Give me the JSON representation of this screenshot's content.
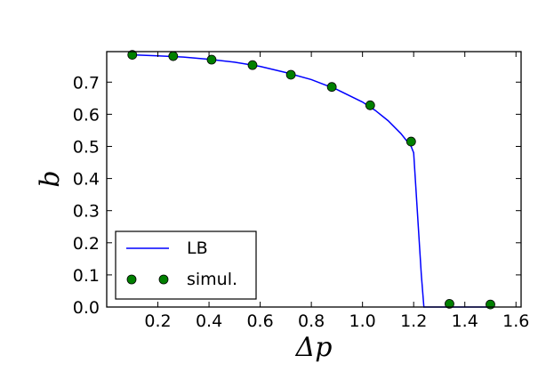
{
  "chart_data": {
    "type": "line",
    "xlabel": "Δp",
    "ylabel": "b",
    "xlim": [
      0.0,
      1.62
    ],
    "ylim": [
      0.0,
      0.795
    ],
    "xticks": [
      "0.2",
      "0.4",
      "0.6",
      "0.8",
      "1.0",
      "1.2",
      "1.4",
      "1.6"
    ],
    "yticks": [
      "0.0",
      "0.1",
      "0.2",
      "0.3",
      "0.4",
      "0.5",
      "0.6",
      "0.7"
    ],
    "legend_position": "lower-left",
    "grid": false,
    "series": [
      {
        "name": "LB",
        "kind": "line",
        "color": "#0000ff",
        "x": [
          0.1,
          0.2,
          0.3,
          0.4,
          0.5,
          0.6,
          0.7,
          0.8,
          0.9,
          1.0,
          1.05,
          1.1,
          1.15,
          1.18,
          1.19,
          1.2,
          1.23,
          1.24,
          1.3,
          1.4,
          1.5
        ],
        "y": [
          0.785,
          0.782,
          0.778,
          0.771,
          0.762,
          0.749,
          0.73,
          0.708,
          0.677,
          0.638,
          0.612,
          0.58,
          0.54,
          0.51,
          0.5,
          0.48,
          0.1,
          0.0,
          0.0,
          0.0,
          0.0
        ]
      },
      {
        "name": "simul.",
        "kind": "scatter",
        "color": "#008000",
        "x": [
          0.1,
          0.26,
          0.41,
          0.57,
          0.72,
          0.88,
          1.03,
          1.19,
          1.34,
          1.5
        ],
        "y": [
          0.785,
          0.781,
          0.77,
          0.753,
          0.723,
          0.685,
          0.628,
          0.515,
          0.01,
          0.008
        ]
      }
    ]
  }
}
